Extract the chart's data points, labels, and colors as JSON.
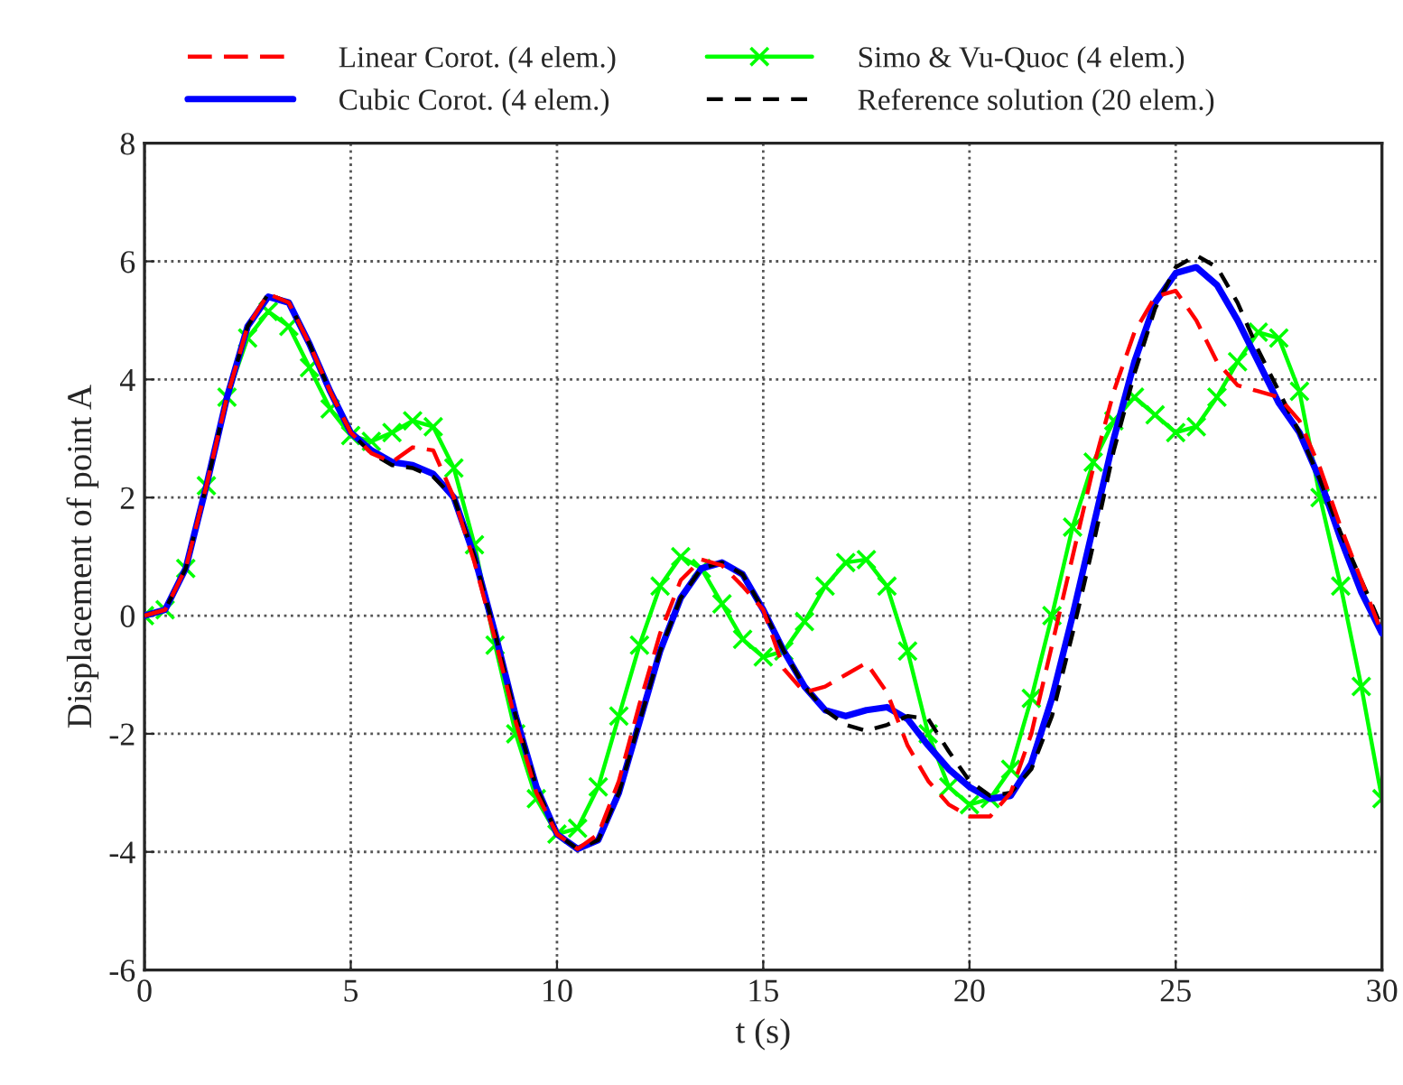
{
  "chart_data": {
    "type": "line",
    "xlabel": "t (s)",
    "ylabel": "Displacement of point A",
    "xlim": [
      0,
      30
    ],
    "ylim": [
      -6,
      8
    ],
    "xticks": [
      0,
      5,
      10,
      15,
      20,
      25,
      30
    ],
    "yticks": [
      -6,
      -4,
      -2,
      0,
      2,
      4,
      6,
      8
    ],
    "grid": true,
    "legend": "top",
    "x": [
      0,
      0.5,
      1,
      1.5,
      2,
      2.5,
      3,
      3.5,
      4,
      4.5,
      5,
      5.5,
      6,
      6.5,
      7,
      7.5,
      8,
      8.5,
      9,
      9.5,
      10,
      10.5,
      11,
      11.5,
      12,
      12.5,
      13,
      13.5,
      14,
      14.5,
      15,
      15.5,
      16,
      16.5,
      17,
      17.5,
      18,
      18.5,
      19,
      19.5,
      20,
      20.5,
      21,
      21.5,
      22,
      22.5,
      23,
      23.5,
      24,
      24.5,
      25,
      25.5,
      26,
      26.5,
      27,
      27.5,
      28,
      28.5,
      29,
      29.5,
      30
    ],
    "series": [
      {
        "name": "Linear Corot. (4 elem.)",
        "color": "#ff0000",
        "line_style": "dashed",
        "marker": "none",
        "values": [
          0,
          0.1,
          0.8,
          2.2,
          3.7,
          4.9,
          5.45,
          5.3,
          4.6,
          3.8,
          3.1,
          2.75,
          2.6,
          2.85,
          2.8,
          2.0,
          0.9,
          -0.4,
          -1.8,
          -3.0,
          -3.7,
          -3.95,
          -3.7,
          -2.8,
          -1.5,
          -0.3,
          0.6,
          0.95,
          0.85,
          0.5,
          0.1,
          -0.9,
          -1.3,
          -1.2,
          -1.0,
          -0.8,
          -1.3,
          -2.2,
          -2.8,
          -3.2,
          -3.4,
          -3.4,
          -3.0,
          -2.0,
          -0.5,
          1.0,
          2.5,
          3.8,
          4.8,
          5.4,
          5.5,
          5.0,
          4.3,
          3.9,
          3.8,
          3.7,
          3.3,
          2.5,
          1.5,
          0.6,
          -0.3
        ]
      },
      {
        "name": "Cubic Corot. (4 elem.)",
        "color": "#0000ff",
        "line_style": "solid",
        "marker": "none",
        "values": [
          0,
          0.1,
          0.8,
          2.2,
          3.7,
          4.9,
          5.4,
          5.3,
          4.6,
          3.8,
          3.1,
          2.8,
          2.6,
          2.55,
          2.4,
          2.0,
          1.0,
          -0.3,
          -1.7,
          -2.9,
          -3.7,
          -3.95,
          -3.8,
          -3.0,
          -1.8,
          -0.6,
          0.3,
          0.8,
          0.9,
          0.7,
          0.1,
          -0.6,
          -1.2,
          -1.6,
          -1.7,
          -1.6,
          -1.55,
          -1.75,
          -2.2,
          -2.6,
          -2.9,
          -3.1,
          -3.05,
          -2.5,
          -1.4,
          0.0,
          1.5,
          3.0,
          4.3,
          5.3,
          5.8,
          5.9,
          5.6,
          5.0,
          4.3,
          3.6,
          3.1,
          2.3,
          1.3,
          0.4,
          -0.3
        ]
      },
      {
        "name": "Simo & Vu-Quoc (4 elem.)",
        "color": "#00ff00",
        "line_style": "solid",
        "marker": "cross",
        "values": [
          0,
          0.1,
          0.8,
          2.2,
          3.7,
          4.7,
          5.15,
          4.9,
          4.2,
          3.5,
          3.05,
          2.95,
          3.1,
          3.3,
          3.2,
          2.5,
          1.2,
          -0.5,
          -2.0,
          -3.1,
          -3.7,
          -3.6,
          -2.9,
          -1.7,
          -0.5,
          0.5,
          1.0,
          0.8,
          0.2,
          -0.4,
          -0.7,
          -0.6,
          -0.1,
          0.5,
          0.9,
          0.95,
          0.5,
          -0.6,
          -2.0,
          -2.9,
          -3.2,
          -3.1,
          -2.6,
          -1.4,
          0.0,
          1.5,
          2.6,
          3.3,
          3.7,
          3.4,
          3.1,
          3.2,
          3.7,
          4.3,
          4.8,
          4.7,
          3.8,
          2.0,
          0.5,
          -1.2,
          -3.1
        ]
      },
      {
        "name": "Reference solution (20 elem.)",
        "color": "#000000",
        "line_style": "dashed",
        "marker": "none",
        "values": [
          0,
          0.1,
          0.8,
          2.2,
          3.7,
          4.9,
          5.45,
          5.3,
          4.6,
          3.8,
          3.1,
          2.75,
          2.55,
          2.5,
          2.35,
          2.0,
          1.0,
          -0.3,
          -1.7,
          -2.9,
          -3.7,
          -3.95,
          -3.8,
          -3.0,
          -1.8,
          -0.6,
          0.3,
          0.8,
          0.9,
          0.7,
          0.1,
          -0.6,
          -1.2,
          -1.6,
          -1.85,
          -1.95,
          -1.85,
          -1.7,
          -1.75,
          -2.3,
          -2.8,
          -3.05,
          -3.0,
          -2.6,
          -1.7,
          -0.3,
          1.2,
          2.8,
          4.1,
          5.2,
          5.9,
          6.1,
          5.9,
          5.3,
          4.5,
          3.8,
          3.1,
          2.3,
          1.4,
          0.6,
          -0.2
        ]
      }
    ]
  }
}
